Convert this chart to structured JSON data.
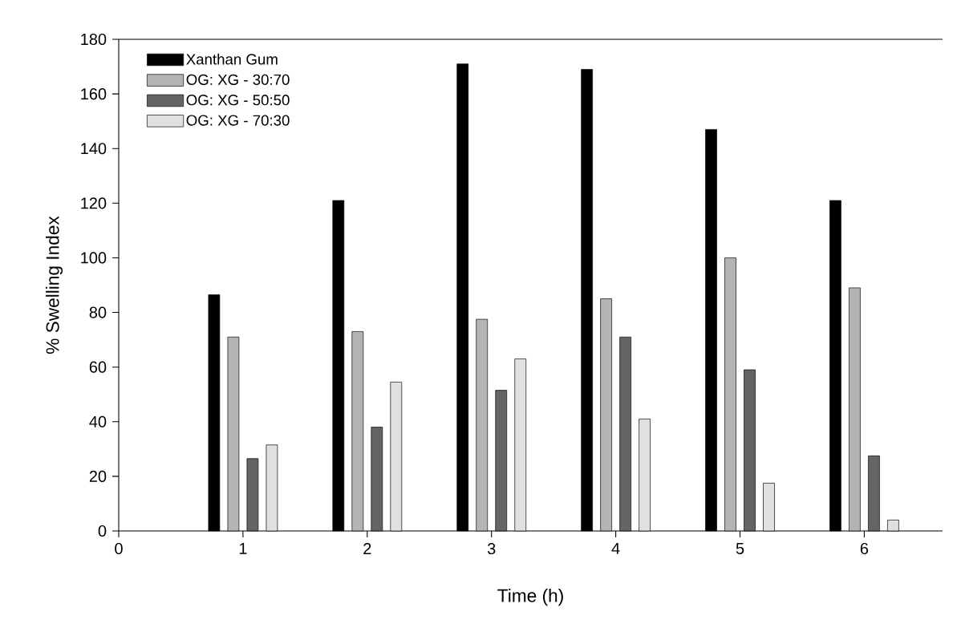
{
  "chart_data": {
    "type": "bar",
    "xlabel": "Time (h)",
    "ylabel": "% Swelling Index",
    "x": [
      1,
      2,
      3,
      4,
      5,
      6
    ],
    "xlim": [
      0,
      6.63
    ],
    "xticks": [
      0,
      1,
      2,
      3,
      4,
      5,
      6
    ],
    "ylim": [
      0,
      180
    ],
    "yticks": [
      0,
      20,
      40,
      60,
      80,
      100,
      120,
      140,
      160,
      180
    ],
    "legend": "top left",
    "series": [
      {
        "name": "Xanthan Gum",
        "color": "#000000",
        "values": [
          86.5,
          121,
          171,
          169,
          147,
          121
        ]
      },
      {
        "name": "OG: XG - 30:70",
        "color": "#b4b4b4",
        "values": [
          71,
          73,
          77.5,
          85,
          100,
          89
        ]
      },
      {
        "name": "OG: XG - 50:50",
        "color": "#646464",
        "values": [
          26.5,
          38,
          51.5,
          71,
          59,
          27.5
        ]
      },
      {
        "name": "OG: XG - 70:30",
        "color": "#e0e0e0",
        "values": [
          31.5,
          54.5,
          63,
          41,
          17.5,
          4
        ]
      }
    ]
  }
}
